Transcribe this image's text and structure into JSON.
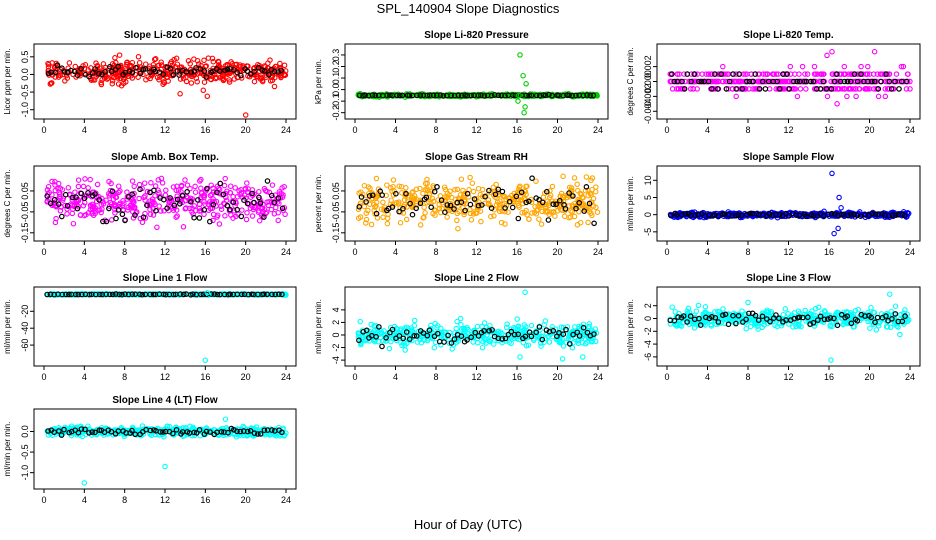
{
  "title": "SPL_140904  Slope Diagnostics",
  "x_title": "Hour of Day (UTC)",
  "colors": {
    "reference": "#000000",
    "red": "#ff0000",
    "green": "#00cc00",
    "magenta": "#ff00ff",
    "orange": "#ffa500",
    "blue": "#0000ff",
    "cyan": "#00ffff"
  },
  "chart_data": [
    {
      "type": "scatter",
      "title": "Slope Li-820 CO2",
      "ylabel": "Licor ppm per min.",
      "xlim": [
        0,
        24
      ],
      "xticks": [
        0,
        4,
        8,
        12,
        16,
        20,
        24
      ],
      "ylim": [
        -1.15,
        0.75
      ],
      "yticks": [
        "-1.0",
        "-0.5",
        "0.0",
        "0.5"
      ],
      "ytick_values": [
        -1.0,
        -0.5,
        0.0,
        0.5
      ],
      "color": "#ff0000",
      "spread": 0.22,
      "center": 0.08,
      "ref_spread": 0.1,
      "outliers": [
        [
          20,
          -1.15
        ],
        [
          15.8,
          -0.45
        ],
        [
          16.2,
          -0.62
        ],
        [
          7.5,
          0.55
        ],
        [
          13.5,
          -0.55
        ]
      ]
    },
    {
      "type": "scatter",
      "title": "Slope Li-820 Pressure",
      "ylabel": "kPa per min.",
      "xlim": [
        0,
        24
      ],
      "xticks": [
        0,
        4,
        8,
        12,
        16,
        20,
        24
      ],
      "ylim": [
        -0.22,
        0.36
      ],
      "yticks": [
        "-0.2",
        "-0.1",
        "0.0",
        "0.1",
        "0.2",
        "0.3"
      ],
      "ytick_values": [
        -0.2,
        -0.1,
        0.0,
        0.1,
        0.2,
        0.3
      ],
      "color": "#00cc00",
      "spread": 0.008,
      "center": -0.05,
      "ref_spread": 0.003,
      "outliers": [
        [
          16.3,
          0.3
        ],
        [
          16.6,
          0.12
        ],
        [
          16.9,
          0.05
        ],
        [
          16.1,
          -0.1
        ],
        [
          16.7,
          -0.2
        ],
        [
          16.2,
          -0.05
        ],
        [
          16.8,
          -0.15
        ]
      ]
    },
    {
      "type": "scatter",
      "title": "Slope Li-820 Temp.",
      "ylabel": "degrees C per min.",
      "xlim": [
        0,
        24
      ],
      "xticks": [
        0,
        4,
        8,
        12,
        16,
        20,
        24
      ],
      "ylim": [
        -0.0045,
        0.0045
      ],
      "yticks": [
        "-0.004",
        "-0.002",
        "0.000",
        "0.002"
      ],
      "ytick_values": [
        -0.004,
        -0.002,
        0.0,
        0.002
      ],
      "color": "#ff00ff",
      "spread": 0.0,
      "center": 0.0,
      "ref_spread": 0.0,
      "quantized": 0.001,
      "outliers": [
        [
          16.3,
          0.004
        ],
        [
          16.8,
          -0.003
        ],
        [
          20.5,
          0.004
        ],
        [
          15.8,
          0.0035
        ]
      ]
    },
    {
      "type": "scatter",
      "title": "Slope Amb. Box Temp.",
      "ylabel": "degrees C per min.",
      "xlim": [
        0,
        24
      ],
      "xticks": [
        0,
        4,
        8,
        12,
        16,
        20,
        24
      ],
      "ylim": [
        -0.17,
        0.15
      ],
      "yticks": [
        "-0.15",
        "-0.05",
        "0.05"
      ],
      "ytick_values": [
        -0.15,
        -0.05,
        0.05
      ],
      "color": "#ff00ff",
      "spread": 0.07,
      "center": 0.0,
      "ref_spread": 0.06,
      "outliers": []
    },
    {
      "type": "scatter",
      "title": "Slope Gas Stream RH",
      "ylabel": "percent per min.",
      "xlim": [
        0,
        24
      ],
      "xticks": [
        0,
        4,
        8,
        12,
        16,
        20,
        24
      ],
      "ylim": [
        -0.17,
        0.15
      ],
      "yticks": [
        "-0.15",
        "-0.05",
        "0.05"
      ],
      "ytick_values": [
        -0.15,
        -0.05,
        0.05
      ],
      "color": "#ffa500",
      "spread": 0.07,
      "center": 0.0,
      "ref_spread": 0.06,
      "outliers": []
    },
    {
      "type": "scatter",
      "title": "Slope Sample Flow",
      "ylabel": "ml/min per min.",
      "xlim": [
        0,
        24
      ],
      "xticks": [
        0,
        4,
        8,
        12,
        16,
        20,
        24
      ],
      "ylim": [
        -6.5,
        13
      ],
      "yticks": [
        "-5",
        "0",
        "5",
        "10"
      ],
      "ytick_values": [
        -5,
        0,
        5,
        10
      ],
      "color": "#0000ff",
      "spread": 0.5,
      "center": 0.0,
      "ref_spread": 0.3,
      "outliers": [
        [
          16.3,
          12
        ],
        [
          17.0,
          5
        ],
        [
          16.5,
          -5.5
        ],
        [
          16.9,
          -4
        ],
        [
          17.2,
          2
        ]
      ]
    },
    {
      "type": "scatter",
      "title": "Slope Line 1 Flow",
      "ylabel": "ml/min per min.",
      "xlim": [
        0,
        24
      ],
      "xticks": [
        0,
        4,
        8,
        12,
        16,
        20,
        24
      ],
      "ylim": [
        -80,
        4
      ],
      "yticks": [
        "-60",
        "-40",
        "-20"
      ],
      "ytick_values": [
        -60,
        -40,
        -20
      ],
      "color": "#00ffff",
      "spread": 0.5,
      "center": 0.0,
      "ref_spread": 0.3,
      "outliers": [
        [
          16.2,
          2
        ],
        [
          16,
          -78
        ]
      ]
    },
    {
      "type": "scatter",
      "title": "Slope Line 2 Flow",
      "ylabel": "ml/min per min.",
      "xlim": [
        0,
        24
      ],
      "xticks": [
        0,
        4,
        8,
        12,
        16,
        20,
        24
      ],
      "ylim": [
        -4.3,
        7
      ],
      "yticks": [
        "-4",
        "-2",
        "0",
        "2",
        "4"
      ],
      "ytick_values": [
        -4,
        -2,
        0,
        2,
        4
      ],
      "color": "#00ffff",
      "spread": 1.3,
      "center": 0.0,
      "ref_spread": 0.9,
      "outliers": [
        [
          16.8,
          6.8
        ],
        [
          16.3,
          -3.5
        ],
        [
          20.5,
          -3.8
        ],
        [
          22.5,
          -3.5
        ]
      ]
    },
    {
      "type": "scatter",
      "title": "Slope Line 3 Flow",
      "ylabel": "ml/min per min.",
      "xlim": [
        0,
        24
      ],
      "xticks": [
        0,
        4,
        8,
        12,
        16,
        20,
        24
      ],
      "ylim": [
        -6.8,
        4.3
      ],
      "yticks": [
        "-6",
        "-4",
        "-2",
        "0",
        "2"
      ],
      "ytick_values": [
        -6,
        -4,
        -2,
        0,
        2
      ],
      "color": "#00ffff",
      "spread": 1.0,
      "center": 0.0,
      "ref_spread": 0.6,
      "outliers": [
        [
          16.2,
          -6.5
        ],
        [
          22,
          3.8
        ],
        [
          23,
          -2.5
        ],
        [
          8,
          2.5
        ]
      ]
    },
    {
      "type": "scatter",
      "title": "Slope Line 4 (LT) Flow",
      "ylabel": "ml/min per min.",
      "xlim": [
        0,
        24
      ],
      "xticks": [
        0,
        4,
        8,
        12,
        16,
        20,
        24
      ],
      "ylim": [
        -1.3,
        0.45
      ],
      "yticks": [
        "-1.0",
        "-0.5",
        "0.0"
      ],
      "ytick_values": [
        -1.0,
        -0.5,
        0.0
      ],
      "color": "#00ffff",
      "spread": 0.08,
      "center": 0.0,
      "ref_spread": 0.05,
      "outliers": [
        [
          4,
          -1.25
        ],
        [
          12,
          -0.85
        ],
        [
          18,
          0.3
        ]
      ]
    }
  ]
}
